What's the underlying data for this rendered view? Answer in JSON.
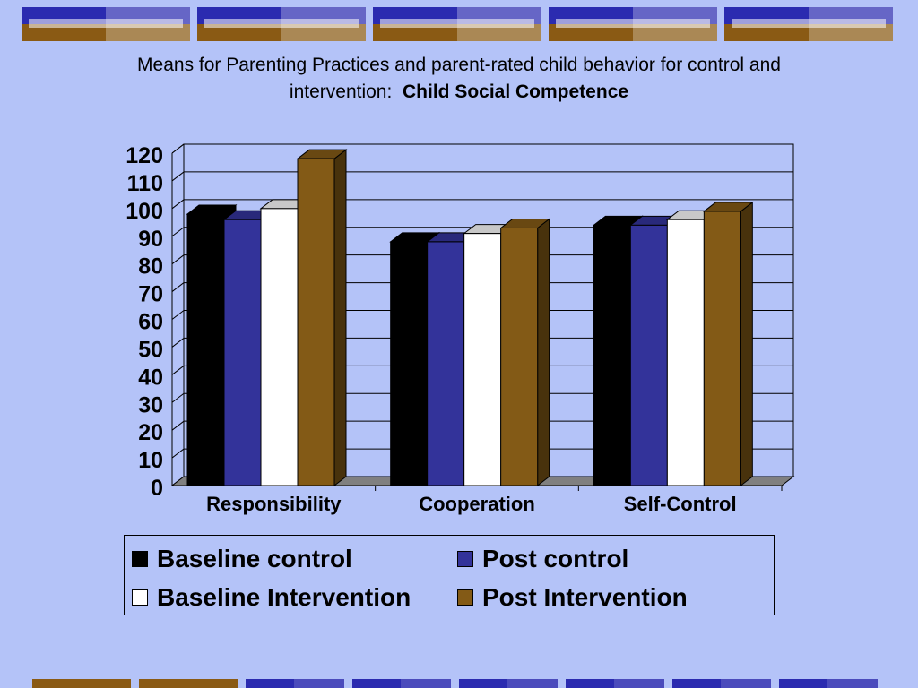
{
  "title": {
    "line1": "Means for Parenting Practices and parent-rated child behavior for control and",
    "line2_prefix": "intervention:",
    "line2_bold": "Child Social Competence"
  },
  "colors": {
    "background": "#b4c3f8",
    "baseline_control": "#000000",
    "post_control": "#33339a",
    "baseline_intervention": "#ffffff",
    "post_intervention": "#835a16",
    "deco_blue": "#2b2bb0",
    "deco_brown": "#8a5a14"
  },
  "chart_data": {
    "type": "bar",
    "style": "3d-clustered",
    "categories": [
      "Responsibility",
      "Cooperation",
      "Self-Control"
    ],
    "series": [
      {
        "name": "Baseline control",
        "color": "#000000",
        "values": [
          98,
          88,
          94
        ]
      },
      {
        "name": "Post control",
        "color": "#33339a",
        "values": [
          96,
          88,
          94
        ]
      },
      {
        "name": "Baseline Intervention",
        "color": "#ffffff",
        "values": [
          100,
          91,
          96
        ]
      },
      {
        "name": "Post Intervention",
        "color": "#835a16",
        "values": [
          118,
          93,
          99
        ]
      }
    ],
    "yticks": [
      "0",
      "10",
      "20",
      "30",
      "40",
      "50",
      "60",
      "70",
      "80",
      "90",
      "100",
      "110",
      "120"
    ],
    "ylim": [
      0,
      120
    ],
    "grid": true,
    "legend_position": "bottom",
    "xlabel": "",
    "ylabel": ""
  },
  "legend": {
    "items": [
      {
        "label": "Baseline control",
        "color": "#000000"
      },
      {
        "label": "Post control",
        "color": "#33339a"
      },
      {
        "label": "Baseline Intervention",
        "color": "#ffffff"
      },
      {
        "label": "Post Intervention",
        "color": "#835a16"
      }
    ]
  }
}
